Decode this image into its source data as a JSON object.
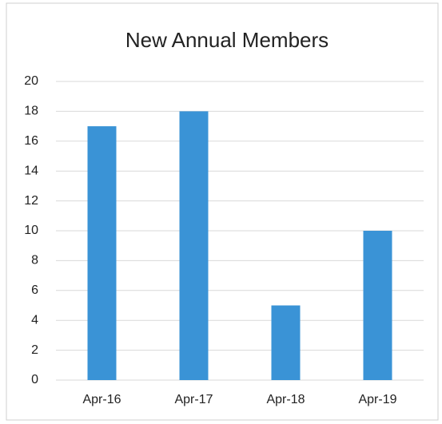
{
  "chart_data": {
    "type": "bar",
    "title": "New Annual Members",
    "categories": [
      "Apr-16",
      "Apr-17",
      "Apr-18",
      "Apr-19"
    ],
    "values": [
      17,
      18,
      5,
      10
    ],
    "color": "#3a93d6",
    "ylim": [
      0,
      20
    ],
    "yticks": [
      0,
      2,
      4,
      6,
      8,
      10,
      12,
      14,
      16,
      18,
      20
    ],
    "grid": true
  }
}
